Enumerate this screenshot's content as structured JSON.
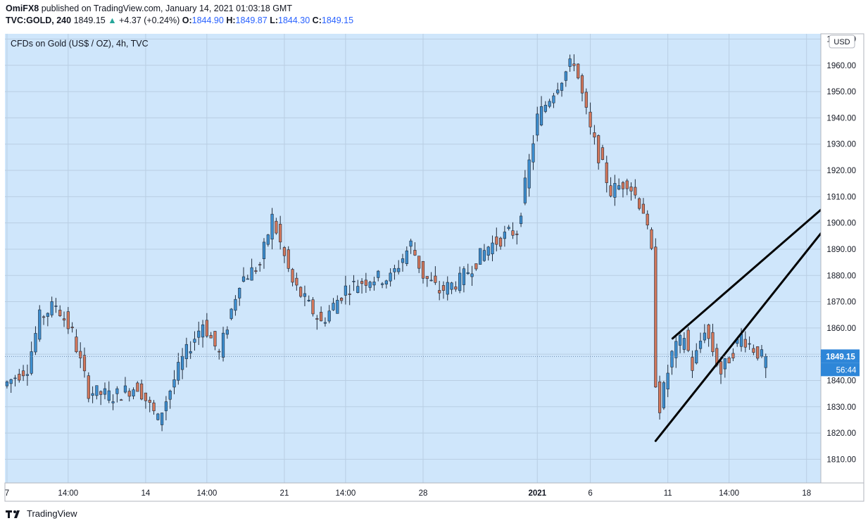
{
  "header": {
    "author": "OmiFX8",
    "published_text": "published on TradingView.com, January 14, 2021 01:03:18 GMT",
    "symbol": "TVC:GOLD, 240",
    "last": "1849.15",
    "change": "+4.37 (+0.24%)",
    "o_label": "O:",
    "o_value": "1844.90",
    "h_label": "H:",
    "h_value": "1849.87",
    "l_label": "L:",
    "l_value": "1844.30",
    "c_label": "C:",
    "c_value": "1849.15"
  },
  "legend_title": "CFDs on Gold (US$ / OZ), 4h, TVC",
  "currency": "USD",
  "price_label": "1849.15",
  "countdown": "56:44",
  "footer_brand": "TradingView",
  "colors": {
    "bg": "#cfe6fb",
    "up": "#3d8fd1",
    "down": "#d3775b",
    "wick": "#1e2a3a",
    "line": "#000000"
  },
  "chart_data": {
    "type": "candlestick",
    "title": "CFDs on Gold (US$ / OZ), 4h, TVC",
    "interval": "4h",
    "ylim": [
      1801,
      1972
    ],
    "y_ticks": [
      "1810.00",
      "1820.00",
      "1830.00",
      "1840.00",
      "1850.00",
      "1860.00",
      "1870.00",
      "1880.00",
      "1890.00",
      "1900.00",
      "1910.00",
      "1920.00",
      "1930.00",
      "1940.00",
      "1950.00",
      "1960.00",
      "1970.00"
    ],
    "x_tick_labels": [
      "7",
      "14:00",
      "14",
      "14:00",
      "21",
      "14:00",
      "28",
      "2021",
      "6",
      "11",
      "14:00",
      "18"
    ],
    "x_tick_bars": [
      0,
      15,
      34,
      49,
      68,
      83,
      102,
      130,
      143,
      162,
      177,
      196
    ],
    "last_price": 1849.15,
    "segments": [
      [
        0,
        1838
      ],
      [
        6,
        1845
      ],
      [
        9,
        1864
      ],
      [
        13,
        1869
      ],
      [
        17,
        1858
      ],
      [
        21,
        1836
      ],
      [
        27,
        1834
      ],
      [
        33,
        1838
      ],
      [
        38,
        1825
      ],
      [
        44,
        1848
      ],
      [
        49,
        1862
      ],
      [
        53,
        1850
      ],
      [
        58,
        1878
      ],
      [
        63,
        1884
      ],
      [
        66,
        1902
      ],
      [
        71,
        1877
      ],
      [
        78,
        1862
      ],
      [
        84,
        1875
      ],
      [
        90,
        1879
      ],
      [
        95,
        1879
      ],
      [
        100,
        1892
      ],
      [
        103,
        1880
      ],
      [
        107,
        1874
      ],
      [
        112,
        1878
      ],
      [
        119,
        1891
      ],
      [
        124,
        1896
      ],
      [
        126,
        1897
      ],
      [
        131,
        1940
      ],
      [
        136,
        1953
      ],
      [
        140,
        1962
      ],
      [
        144,
        1935
      ],
      [
        149,
        1912
      ],
      [
        153,
        1916
      ],
      [
        157,
        1905
      ],
      [
        159,
        1888
      ],
      [
        160,
        1840
      ],
      [
        161,
        1830
      ],
      [
        164,
        1850
      ],
      [
        167,
        1857
      ],
      [
        169,
        1845
      ],
      [
        172,
        1860
      ],
      [
        176,
        1843
      ],
      [
        181,
        1857
      ],
      [
        186,
        1849
      ]
    ],
    "trendlines": [
      {
        "name": "rising-wedge-upper",
        "points": [
          [
            1.2,
            1856
          ],
          [
            4.4,
            1905
          ]
        ]
      },
      {
        "name": "rising-wedge-lower",
        "points": [
          [
            1.0,
            1817
          ],
          [
            4.4,
            1896
          ]
        ]
      }
    ]
  }
}
